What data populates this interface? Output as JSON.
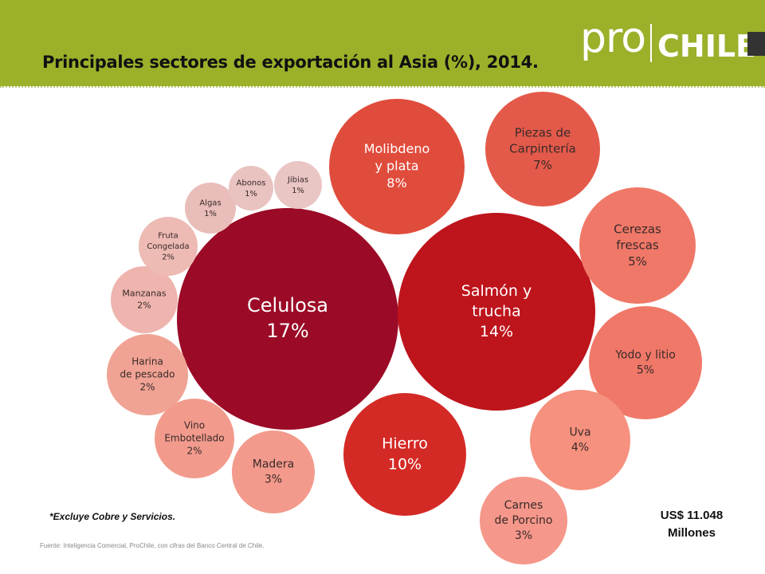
{
  "header": {
    "title": "Principales sectores de exportación al Asia (%), 2014.",
    "logo": {
      "text_pro": "pro",
      "text_chile": "CHILE"
    }
  },
  "footer": {
    "note": "*Excluye Cobre y Servicios.",
    "source": "Fuente: Inteligencia Comercial, ProChile, con cifras del Banco Central de Chile.",
    "total_amount": "US$ 11.048",
    "total_unit": "Millones"
  },
  "chart_data": {
    "type": "bubble",
    "unit": "%",
    "bubbles": [
      {
        "label": "Celulosa",
        "value": 17,
        "color": "#9b0a26"
      },
      {
        "label": "Salmón y trucha",
        "value": 14,
        "color": "#be141c"
      },
      {
        "label": "Hierro",
        "value": 10,
        "color": "#d42a26"
      },
      {
        "label": "Molibdeno y plata",
        "value": 8,
        "color": "#e04c3c"
      },
      {
        "label": "Piezas de Carpintería",
        "value": 7,
        "color": "#e45a4a"
      },
      {
        "label": "Cerezas frescas",
        "value": 5,
        "color": "#f07868"
      },
      {
        "label": "Yodo y litio",
        "value": 5,
        "color": "#f07868"
      },
      {
        "label": "Uva",
        "value": 4,
        "color": "#f5917e"
      },
      {
        "label": "Carnes de Porcino",
        "value": 3,
        "color": "#f5978a"
      },
      {
        "label": "Madera",
        "value": 3,
        "color": "#f39a8c"
      },
      {
        "label": "Vino Embotellado",
        "value": 2,
        "color": "#f29b8c"
      },
      {
        "label": "Harina de pescado",
        "value": 2,
        "color": "#f0a394"
      },
      {
        "label": "Manzanas",
        "value": 2,
        "color": "#eeb4ad"
      },
      {
        "label": "Fruta Congelada",
        "value": 2,
        "color": "#edbab4"
      },
      {
        "label": "Algas",
        "value": 1,
        "color": "#e9bdb9"
      },
      {
        "label": "Abonos",
        "value": 1,
        "color": "#e9c3c0"
      },
      {
        "label": "Jibias",
        "value": 1,
        "color": "#e9c5c3"
      }
    ]
  }
}
